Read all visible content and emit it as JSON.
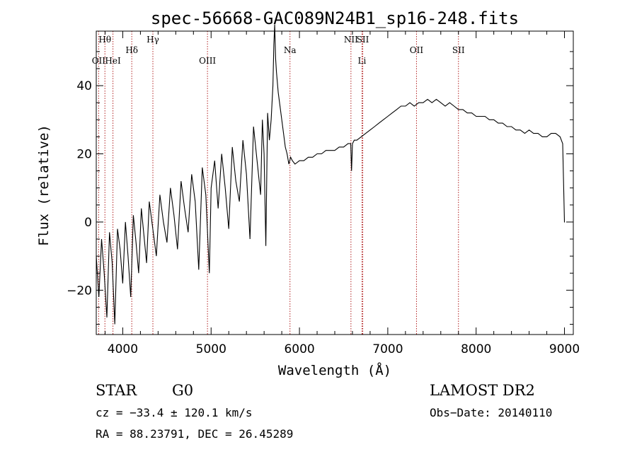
{
  "chart_data": {
    "type": "line",
    "title": "spec-56668-GAC089N24B1_sp16-248.fits",
    "xlabel": "Wavelength (Å)",
    "ylabel": "Flux (relative)",
    "xlim": [
      3700,
      9100
    ],
    "ylim": [
      -33,
      56
    ],
    "xticks": [
      4000,
      5000,
      6000,
      7000,
      8000,
      9000
    ],
    "yticks": [
      -20,
      0,
      20,
      40
    ],
    "grid": false,
    "line_color": "#000000",
    "marker_color": "#b22222",
    "series": [
      {
        "x": [
          3700,
          3730,
          3760,
          3790,
          3820,
          3850,
          3880,
          3910,
          3940,
          3970,
          4000,
          4030,
          4060,
          4090,
          4120,
          4150,
          4180,
          4210,
          4240,
          4270,
          4300,
          4340,
          4380,
          4420,
          4460,
          4500,
          4540,
          4580,
          4620,
          4660,
          4700,
          4740,
          4780,
          4820,
          4860,
          4900,
          4940,
          4980,
          5000,
          5040,
          5080,
          5120,
          5160,
          5200,
          5240,
          5280,
          5320,
          5360,
          5400,
          5440,
          5480,
          5520,
          5560,
          5580,
          5600,
          5620,
          5640,
          5660,
          5680,
          5700,
          5710,
          5720,
          5730,
          5740,
          5760,
          5780,
          5800,
          5820,
          5840,
          5860,
          5880,
          5900,
          5920,
          5950,
          6000,
          6050,
          6100,
          6150,
          6200,
          6250,
          6300,
          6350,
          6400,
          6450,
          6500,
          6550,
          6580,
          6590,
          6600,
          6620,
          6650,
          6700,
          6750,
          6800,
          6850,
          6900,
          6950,
          7000,
          7050,
          7100,
          7150,
          7200,
          7250,
          7300,
          7350,
          7400,
          7450,
          7500,
          7550,
          7600,
          7650,
          7700,
          7750,
          7800,
          7850,
          7900,
          7950,
          8000,
          8050,
          8100,
          8150,
          8200,
          8250,
          8300,
          8350,
          8400,
          8450,
          8500,
          8550,
          8600,
          8650,
          8700,
          8750,
          8800,
          8850,
          8900,
          8950,
          8980,
          9000,
          9005
        ],
        "y": [
          -10,
          -22,
          -5,
          -15,
          -28,
          -3,
          -12,
          -30,
          -2,
          -8,
          -18,
          0,
          -10,
          -22,
          2,
          -6,
          -15,
          4,
          -4,
          -12,
          6,
          -2,
          -10,
          8,
          0,
          -6,
          10,
          2,
          -8,
          12,
          4,
          -3,
          14,
          6,
          -14,
          16,
          8,
          -15,
          10,
          18,
          4,
          20,
          10,
          -2,
          22,
          12,
          6,
          24,
          14,
          -5,
          28,
          18,
          8,
          30,
          20,
          -7,
          32,
          24,
          30,
          40,
          52,
          58,
          48,
          44,
          38,
          34,
          30,
          26,
          22,
          20,
          17,
          19,
          18,
          17,
          18,
          18,
          19,
          19,
          20,
          20,
          21,
          21,
          21,
          22,
          22,
          23,
          23,
          15,
          23,
          24,
          24,
          25,
          26,
          27,
          28,
          29,
          30,
          31,
          32,
          33,
          34,
          34,
          35,
          34,
          35,
          35,
          36,
          35,
          36,
          35,
          34,
          35,
          34,
          33,
          33,
          32,
          32,
          31,
          31,
          31,
          30,
          30,
          29,
          29,
          28,
          28,
          27,
          27,
          26,
          27,
          26,
          26,
          25,
          25,
          26,
          26,
          25,
          23,
          0,
          0
        ]
      }
    ],
    "line_markers": [
      {
        "label": "Hθ",
        "x": 3798,
        "row": 1
      },
      {
        "label": "OII",
        "x": 3727,
        "row": 2
      },
      {
        "label": "HeI",
        "x": 3889,
        "row": 2
      },
      {
        "label": "Hδ",
        "x": 4102,
        "row": 1.5
      },
      {
        "label": "Hγ",
        "x": 4341,
        "row": 1
      },
      {
        "label": "OIII",
        "x": 4959,
        "row": 2
      },
      {
        "label": "Na",
        "x": 5893,
        "row": 1.5
      },
      {
        "label": "NII",
        "x": 6583,
        "row": 1
      },
      {
        "label": "SII",
        "x": 6717,
        "row": 1
      },
      {
        "label": "Li",
        "x": 6708,
        "row": 2
      },
      {
        "label": "OII",
        "x": 7325,
        "row": 1.5
      },
      {
        "label": "SII",
        "x": 7800,
        "row": 1.5
      }
    ]
  },
  "info": {
    "class_label": "STAR",
    "subclass": "G0",
    "survey": "LAMOST DR2",
    "cz_line": "cz = −33.4 ± 120.1 km/s",
    "obs_date": "Obs−Date: 20140110",
    "coords": "RA =  88.23791, DEC =  26.45289"
  }
}
